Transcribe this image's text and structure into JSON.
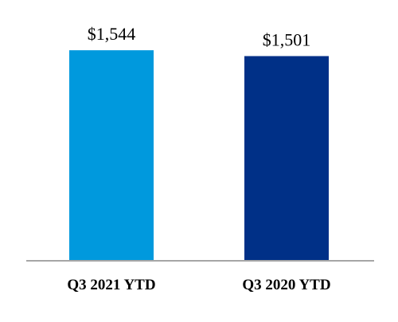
{
  "chart_data": {
    "type": "bar",
    "categories": [
      "Q3 2021 YTD",
      "Q3 2020 YTD"
    ],
    "values": [
      1544,
      1501
    ],
    "data_labels": [
      "$1,544",
      "$1,501"
    ],
    "colors": [
      "#0099DD",
      "#003087"
    ],
    "axis_color": "#A6A6A6",
    "title": "",
    "xlabel": "",
    "ylabel": "",
    "ylim": [
      0,
      1650
    ],
    "grid": false,
    "legend": "none"
  }
}
